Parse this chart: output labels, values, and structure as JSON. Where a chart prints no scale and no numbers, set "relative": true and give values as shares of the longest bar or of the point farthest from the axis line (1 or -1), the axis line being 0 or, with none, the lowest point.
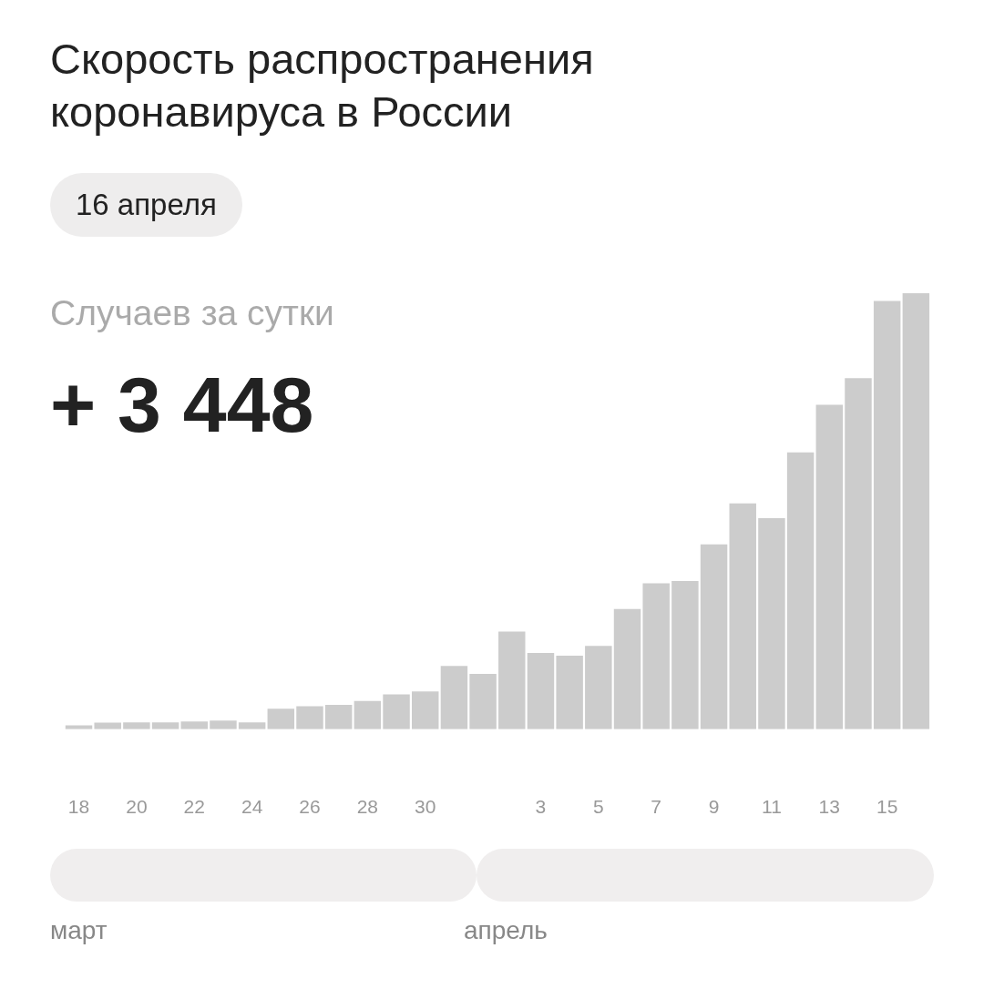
{
  "chart_data": {
    "type": "bar",
    "title": "Скорость распространения коронавируса в России",
    "subtitle": "16 апреля",
    "ylabel": "Случаев за сутки",
    "annotations": [
      "+ 3 448",
      "март",
      "апрель"
    ],
    "categories": [
      "18",
      null,
      "20",
      null,
      "22",
      null,
      "24",
      null,
      "26",
      null,
      "28",
      null,
      "30",
      null,
      null,
      null,
      "3",
      null,
      "5",
      null,
      "7",
      null,
      "9",
      null,
      "11",
      null,
      "13",
      null,
      "15",
      null
    ],
    "values": [
      0.009,
      0.015,
      0.016,
      0.016,
      0.018,
      0.02,
      0.016,
      0.047,
      0.053,
      0.056,
      0.065,
      0.08,
      0.087,
      0.145,
      0.127,
      0.224,
      0.175,
      0.169,
      0.191,
      0.276,
      0.335,
      0.34,
      0.424,
      0.518,
      0.484,
      0.635,
      0.744,
      0.805,
      0.982,
      1
    ],
    "color": "#cccccc",
    "relative": true,
    "grid": false,
    "legend": false
  }
}
